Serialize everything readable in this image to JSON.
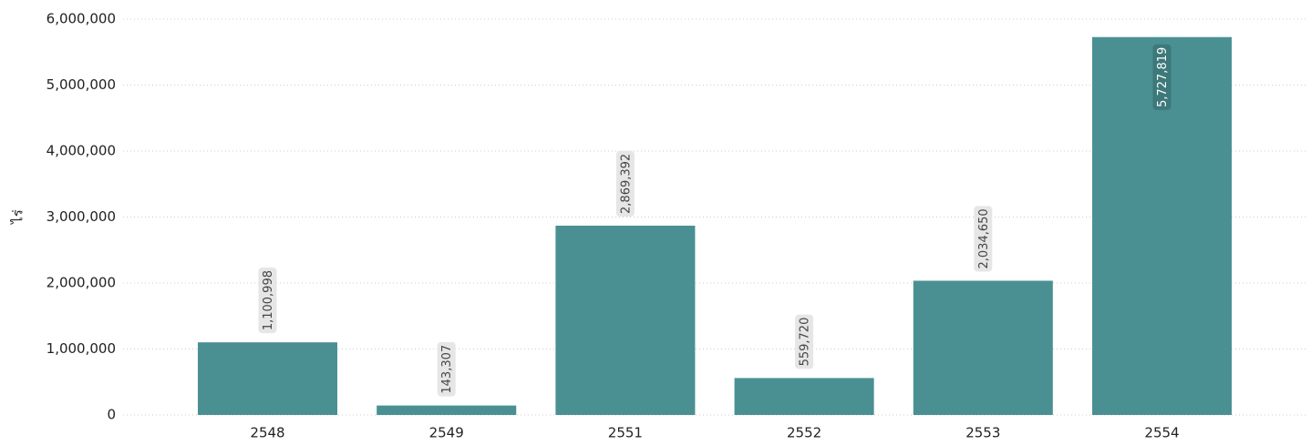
{
  "chart_data": {
    "type": "bar",
    "y_label": "ไร่",
    "categories": [
      "2548",
      "2549",
      "2551",
      "2552",
      "2553",
      "2554"
    ],
    "values": [
      1100998,
      143307,
      2869392,
      559720,
      2034650,
      5727819
    ],
    "value_labels": [
      "1,100,998",
      "143,307",
      "2,869,392",
      "559,720",
      "2,034,650",
      "5,727,819"
    ],
    "color": "#4a9093",
    "ylim": [
      0,
      6000000
    ],
    "yticks": [
      0,
      {
        "value": 1000000,
        "label": "1,000,000"
      },
      {
        "value": 2000000,
        "label": "2,000,000"
      },
      {
        "value": 3000000,
        "label": "3,000,000"
      },
      {
        "value": 4000000,
        "label": "4,000,000"
      },
      {
        "value": 5000000,
        "label": "5,000,000"
      },
      {
        "value": 6000000,
        "label": "6,000,000"
      }
    ],
    "grid": true
  }
}
